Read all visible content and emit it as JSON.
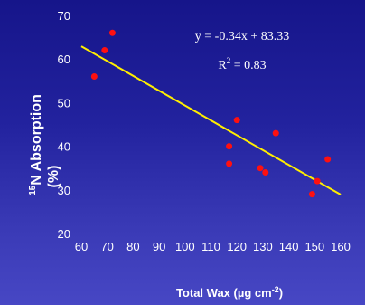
{
  "chart_data": {
    "type": "scatter",
    "title": "",
    "xlabel_main": "Total Wax (µg cm",
    "xlabel_sup": "-2",
    "xlabel_end": ")",
    "ylabel_sup": "15",
    "ylabel_line1": "N Absorption",
    "ylabel_line2": "(%)",
    "xlim": [
      60,
      160
    ],
    "ylim": [
      20,
      70
    ],
    "xticks": [
      60,
      70,
      80,
      90,
      100,
      110,
      120,
      130,
      140,
      150,
      160
    ],
    "yticks": [
      20,
      30,
      40,
      50,
      60,
      70
    ],
    "grid": false,
    "colors": {
      "points": "#ff1010",
      "trendline": "#ffee00",
      "text": "#ffffff"
    },
    "series": [
      {
        "points": [
          {
            "x": 65,
            "y": 56
          },
          {
            "x": 69,
            "y": 62
          },
          {
            "x": 72,
            "y": 66
          },
          {
            "x": 117,
            "y": 40
          },
          {
            "x": 117,
            "y": 36
          },
          {
            "x": 120,
            "y": 46
          },
          {
            "x": 129,
            "y": 35
          },
          {
            "x": 131,
            "y": 34
          },
          {
            "x": 135,
            "y": 43
          },
          {
            "x": 149,
            "y": 29
          },
          {
            "x": 151,
            "y": 32
          },
          {
            "x": 155,
            "y": 37
          }
        ]
      }
    ],
    "trendline": {
      "slope": -0.34,
      "intercept": 83.33,
      "x_range": [
        60,
        160
      ]
    },
    "annotations": {
      "equation": "y = -0.34x + 83.33",
      "r2_prefix": "R",
      "r2_sup": "2",
      "r2_value": " = 0.83"
    }
  }
}
